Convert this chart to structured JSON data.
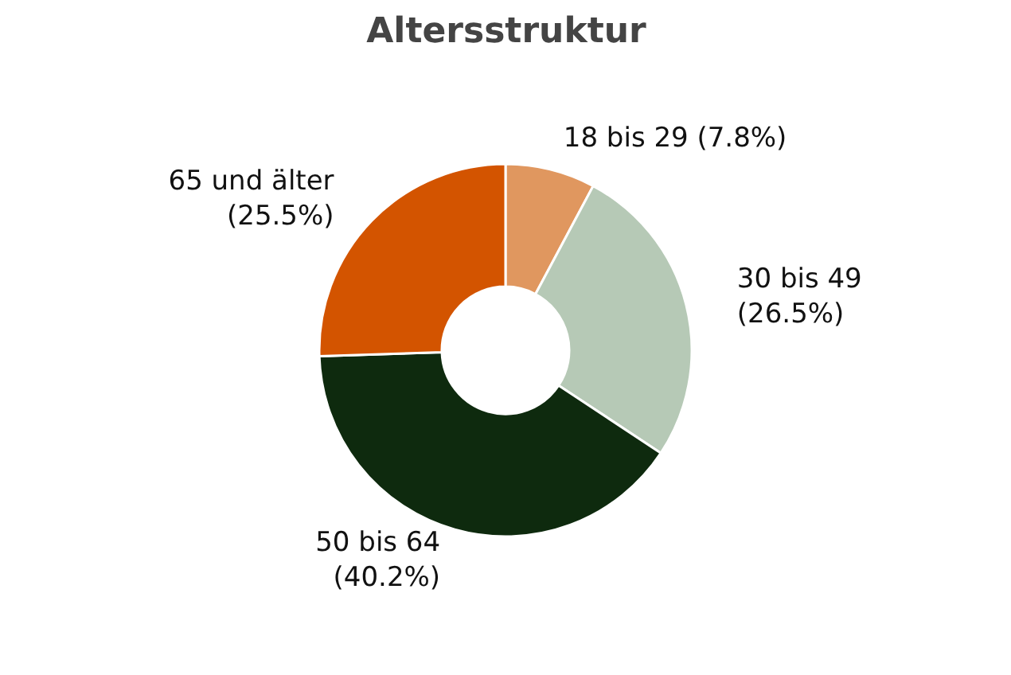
{
  "chart_data": {
    "type": "donut",
    "title": "Altersstruktur",
    "categories": [
      "18 bis 29",
      "30 bis 49",
      "50 bis 64",
      "65 und älter"
    ],
    "values": [
      7.8,
      26.5,
      40.2,
      25.5
    ],
    "value_labels": [
      "(7.8%)",
      "(26.5%)",
      "(40.2%)",
      "(25.5%)"
    ],
    "colors": [
      "#e0975f",
      "#b6c9b6",
      "#0e2a0e",
      "#d35400"
    ],
    "legend": false
  }
}
